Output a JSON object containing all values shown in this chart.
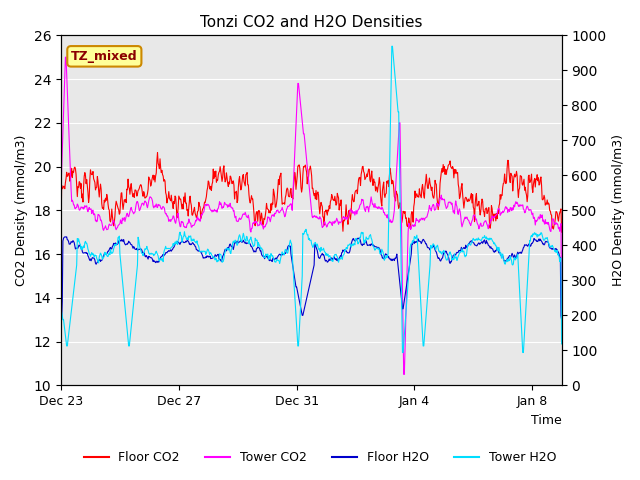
{
  "title": "Tonzi CO2 and H2O Densities",
  "xlabel": "Time",
  "ylabel_left": "CO2 Density (mmol/m3)",
  "ylabel_right": "H2O Density (mmol/m3)",
  "ylim_left": [
    10,
    26
  ],
  "ylim_right": [
    0,
    1000
  ],
  "yticks_left": [
    10,
    12,
    14,
    16,
    18,
    20,
    22,
    24,
    26
  ],
  "yticks_right": [
    0,
    100,
    200,
    300,
    400,
    500,
    600,
    700,
    800,
    900,
    1000
  ],
  "xtick_labels": [
    "Dec 23",
    "Dec 27",
    "Dec 31",
    "Jan 4",
    "Jan 8"
  ],
  "xtick_positions": [
    0,
    4,
    8,
    12,
    16
  ],
  "xlim": [
    0,
    17
  ],
  "annotation_text": "TZ_mixed",
  "line_colors": {
    "floor_co2": "#FF0000",
    "tower_co2": "#FF00FF",
    "floor_h2o": "#0000CC",
    "tower_h2o": "#00DDFF"
  },
  "legend_labels": [
    "Floor CO2",
    "Tower CO2",
    "Floor H2O",
    "Tower H2O"
  ],
  "bg_color": "#E8E8E8",
  "fig_color": "#FFFFFF",
  "grid_color": "#FFFFFF",
  "n_points": 800,
  "total_days": 17
}
